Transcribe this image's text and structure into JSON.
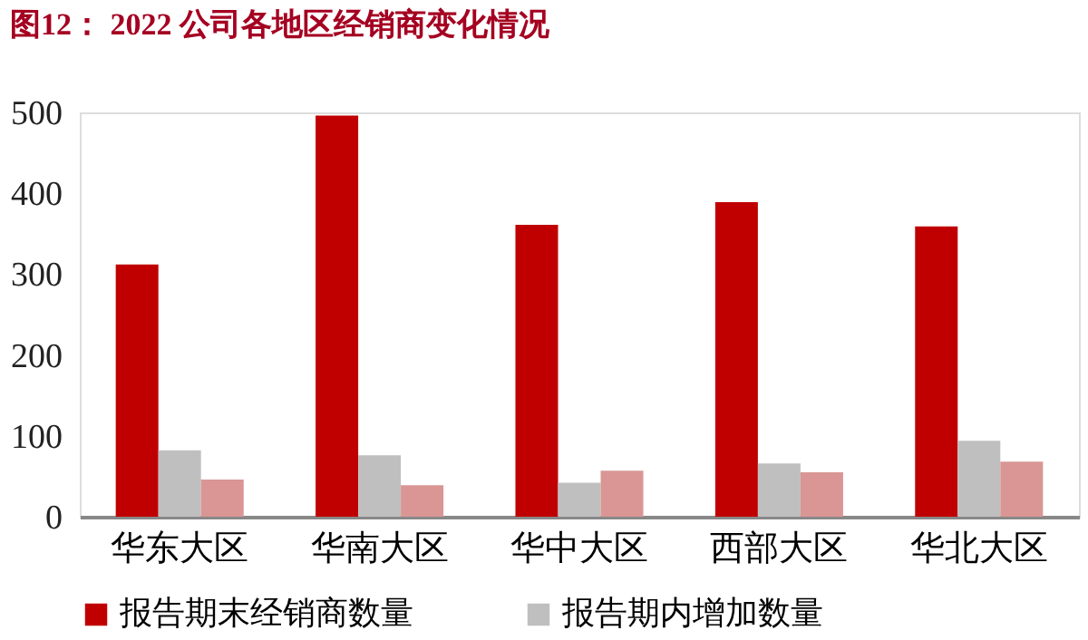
{
  "chart_data": {
    "type": "bar",
    "title": "图12： 2022 公司各地区经销商变化情况",
    "categories": [
      "华东大区",
      "华南大区",
      "华中大区",
      "西部大区",
      "华北大区"
    ],
    "series": [
      {
        "name": "报告期末经销商数量",
        "color": "#c00000",
        "values": [
          312,
          496,
          361,
          389,
          359
        ]
      },
      {
        "name": "报告期内增加数量",
        "color": "#bfbfbf",
        "values": [
          82,
          76,
          42,
          66,
          94
        ]
      },
      {
        "color": "#d99694",
        "values": [
          46,
          39,
          57,
          55,
          68
        ]
      }
    ],
    "ylim": [
      0,
      500
    ],
    "yticks": [
      0,
      100,
      200,
      300,
      400,
      500
    ],
    "grid": false,
    "legend": "bottom"
  }
}
